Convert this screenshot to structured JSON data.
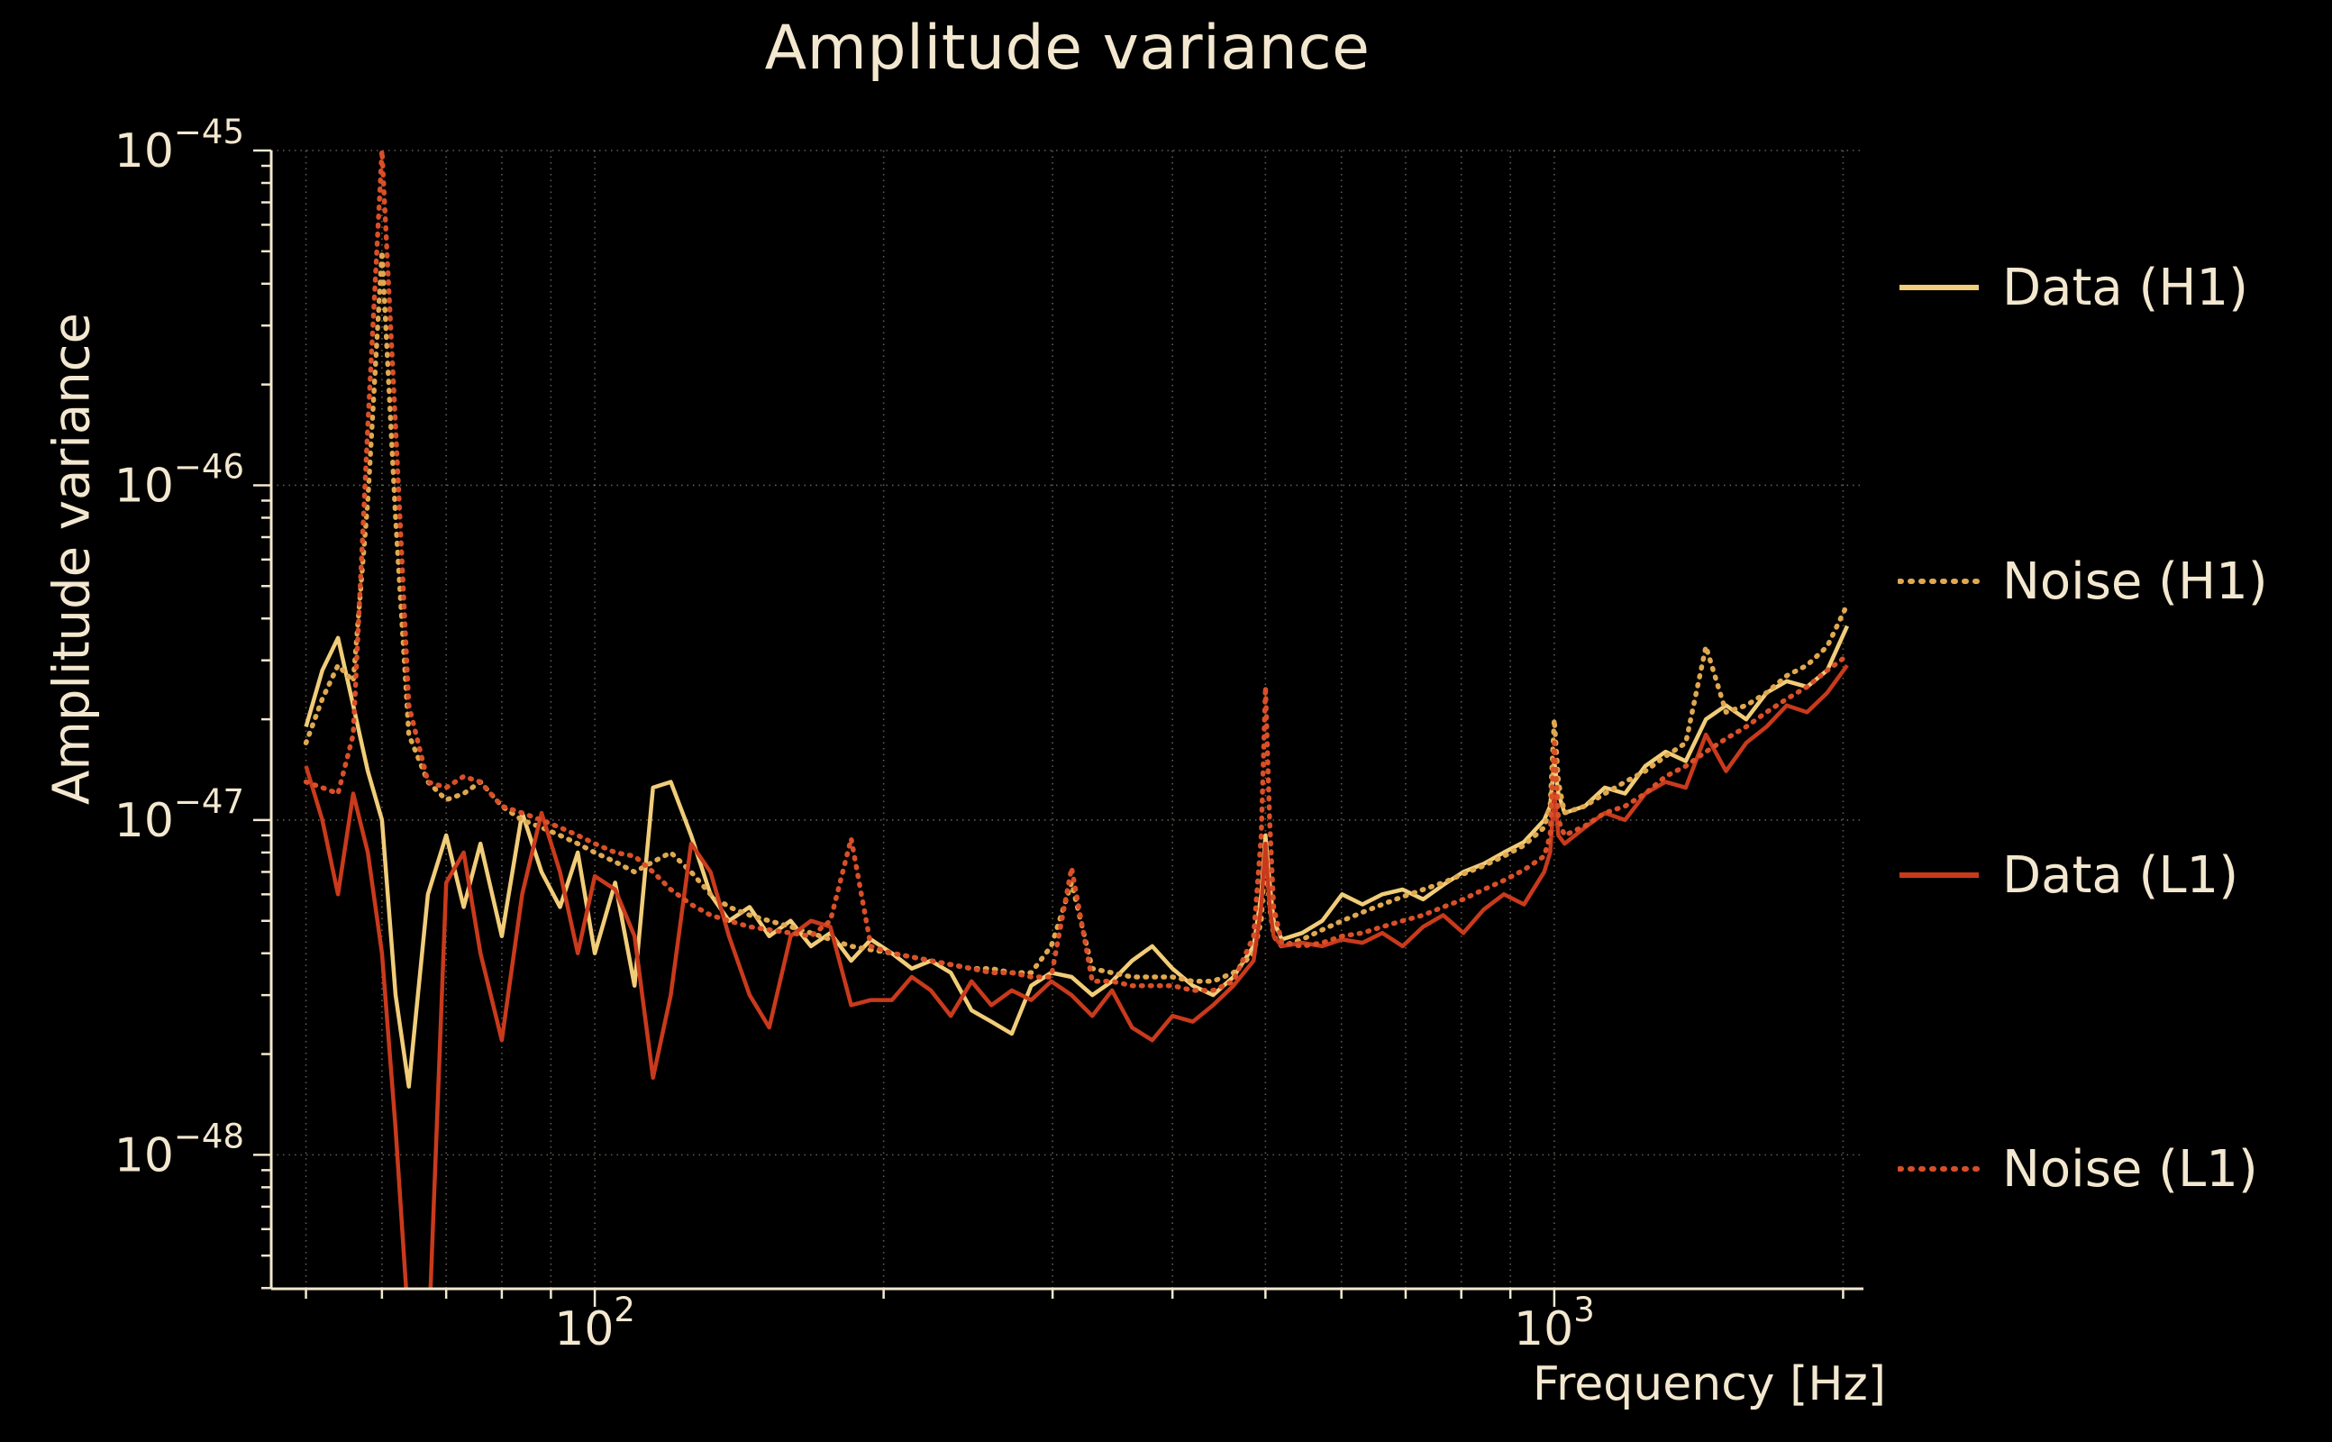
{
  "title": "Amplitude variance",
  "xlabel": "Frequency [Hz]",
  "ylabel": "Amplitude variance",
  "colors": {
    "background": "#000000",
    "text": "#f3e8cf",
    "grid": "#e8dcc0",
    "h1_data": "#f1cd79",
    "h1_noise": "#dfa850",
    "l1_data": "#c93a1c",
    "l1_noise": "#d84f28"
  },
  "legend": [
    {
      "label": "Data (H1)",
      "color": "#f1cd79",
      "dashed": false
    },
    {
      "label": "Noise (H1)",
      "color": "#dfa850",
      "dashed": true
    },
    {
      "label": "Data (L1)",
      "color": "#c93a1c",
      "dashed": false
    },
    {
      "label": "Noise (L1)",
      "color": "#d84f28",
      "dashed": true
    }
  ],
  "axes": {
    "xscale": "log",
    "yscale": "log",
    "xlim": [
      46,
      2100
    ],
    "ylim": [
      3.98e-49,
      1e-45
    ],
    "x_major_ticks": [
      {
        "value": 100,
        "base": "10",
        "exp": "2"
      },
      {
        "value": 1000,
        "base": "10",
        "exp": "3"
      }
    ],
    "x_minor_ticks": [
      50,
      60,
      70,
      80,
      90,
      200,
      300,
      400,
      500,
      600,
      700,
      800,
      900,
      2000
    ],
    "y_major_ticks": [
      {
        "value": 1e-45,
        "base": "10",
        "exp": "−45"
      },
      {
        "value": 1e-46,
        "base": "10",
        "exp": "−46"
      },
      {
        "value": 1e-47,
        "base": "10",
        "exp": "−47"
      },
      {
        "value": 1e-48,
        "base": "10",
        "exp": "−48"
      }
    ],
    "grid_on": true,
    "legend_position": "right-outside"
  },
  "chart_data": {
    "type": "line",
    "title": "Amplitude variance",
    "xlabel": "Frequency [Hz]",
    "ylabel": "Amplitude variance",
    "xscale": "log",
    "yscale": "log",
    "xlim": [
      46,
      2100
    ],
    "ylim": [
      3.98e-49,
      1e-45
    ],
    "x": [
      50,
      52,
      54,
      56,
      58,
      60,
      62,
      64,
      67,
      70,
      73,
      76,
      80,
      84,
      88,
      92,
      96,
      100,
      105,
      110,
      115,
      120,
      126,
      132,
      138,
      145,
      152,
      160,
      168,
      176,
      185,
      194,
      204,
      214,
      224,
      235,
      247,
      259,
      272,
      285,
      299,
      314,
      330,
      346,
      363,
      381,
      400,
      420,
      441,
      463,
      486,
      495,
      500,
      505,
      510,
      520,
      546,
      573,
      601,
      631,
      662,
      695,
      730,
      766,
      804,
      844,
      886,
      930,
      976,
      990,
      1000,
      1010,
      1025,
      1076,
      1129,
      1185,
      1244,
      1306,
      1371,
      1439,
      1510,
      1585,
      1664,
      1747,
      1834,
      1925,
      2020
    ],
    "series": [
      {
        "name": "Data (H1)",
        "color": "#f1cd79",
        "style": "solid",
        "values": [
          1.9e-47,
          2.8e-47,
          3.5e-47,
          2.2e-47,
          1.4e-47,
          1e-47,
          3e-48,
          1.6e-48,
          6e-48,
          9e-48,
          5.5e-48,
          8.5e-48,
          4.5e-48,
          1.05e-47,
          7e-48,
          5.5e-48,
          8e-48,
          4e-48,
          6.5e-48,
          3.2e-48,
          1.25e-47,
          1.3e-47,
          9e-48,
          6e-48,
          5e-48,
          5.5e-48,
          4.5e-48,
          5e-48,
          4.2e-48,
          4.6e-48,
          3.8e-48,
          4.4e-48,
          4e-48,
          3.6e-48,
          3.8e-48,
          3.5e-48,
          2.7e-48,
          2.5e-48,
          2.3e-48,
          3.2e-48,
          3.5e-48,
          3.4e-48,
          3e-48,
          3.3e-48,
          3.8e-48,
          4.2e-48,
          3.6e-48,
          3.2e-48,
          3e-48,
          3.4e-48,
          4.2e-48,
          6e-48,
          9e-48,
          6.5e-48,
          5e-48,
          4.4e-48,
          4.6e-48,
          5e-48,
          6e-48,
          5.6e-48,
          6e-48,
          6.2e-48,
          5.8e-48,
          6.4e-48,
          7e-48,
          7.4e-48,
          8e-48,
          8.6e-48,
          1e-47,
          1.1e-47,
          1.5e-47,
          1.2e-47,
          1.05e-47,
          1.1e-47,
          1.25e-47,
          1.2e-47,
          1.45e-47,
          1.6e-47,
          1.5e-47,
          2e-47,
          2.2e-47,
          2e-47,
          2.4e-47,
          2.6e-47,
          2.5e-47,
          2.8e-47,
          3.8e-47
        ]
      },
      {
        "name": "Noise (H1)",
        "color": "#dfa850",
        "style": "dotted",
        "values": [
          1.7e-47,
          2.3e-47,
          2.9e-47,
          2.6e-47,
          9e-47,
          5e-46,
          8e-47,
          1.8e-47,
          1.3e-47,
          1.15e-47,
          1.2e-47,
          1.3e-47,
          1.1e-47,
          1e-47,
          9.5e-48,
          9e-48,
          8.5e-48,
          8e-48,
          7.5e-48,
          7e-48,
          7.5e-48,
          8e-48,
          7e-48,
          6e-48,
          5.5e-48,
          5.2e-48,
          5e-48,
          4.8e-48,
          4.6e-48,
          4.4e-48,
          4.2e-48,
          4.1e-48,
          4e-48,
          3.9e-48,
          3.8e-48,
          3.7e-48,
          3.6e-48,
          3.6e-48,
          3.5e-48,
          3.5e-48,
          4.2e-48,
          6.5e-48,
          3.6e-48,
          3.5e-48,
          3.4e-48,
          3.4e-48,
          3.4e-48,
          3.3e-48,
          3.3e-48,
          3.5e-48,
          4e-48,
          5e-48,
          8e-48,
          5.5e-48,
          4.5e-48,
          4.2e-48,
          4.4e-48,
          4.7e-48,
          5e-48,
          5.3e-48,
          5.6e-48,
          5.9e-48,
          6.2e-48,
          6.5e-48,
          6.9e-48,
          7.3e-48,
          7.8e-48,
          8.4e-48,
          9.5e-48,
          1.1e-47,
          2e-47,
          1.3e-47,
          1.05e-47,
          1.1e-47,
          1.2e-47,
          1.3e-47,
          1.4e-47,
          1.55e-47,
          1.7e-47,
          3.3e-47,
          2.1e-47,
          2.2e-47,
          2.4e-47,
          2.7e-47,
          2.9e-47,
          3.3e-47,
          4.4e-47
        ]
      },
      {
        "name": "Data (L1)",
        "color": "#c93a1c",
        "style": "solid",
        "values": [
          1.45e-47,
          1e-47,
          6e-48,
          1.2e-47,
          8e-48,
          4e-48,
          1.2e-48,
          3e-49,
          2.5e-49,
          6.5e-48,
          8e-48,
          4e-48,
          2.2e-48,
          6e-48,
          1.05e-47,
          7e-48,
          4e-48,
          6.8e-48,
          6.2e-48,
          4.5e-48,
          1.7e-48,
          3e-48,
          8.5e-48,
          7e-48,
          4.5e-48,
          3e-48,
          2.4e-48,
          4.5e-48,
          5e-48,
          4.8e-48,
          2.8e-48,
          2.9e-48,
          2.9e-48,
          3.4e-48,
          3.1e-48,
          2.6e-48,
          3.3e-48,
          2.8e-48,
          3.1e-48,
          2.9e-48,
          3.3e-48,
          3e-48,
          2.6e-48,
          3.1e-48,
          2.4e-48,
          2.2e-48,
          2.6e-48,
          2.5e-48,
          2.8e-48,
          3.2e-48,
          3.8e-48,
          5.5e-48,
          8.5e-48,
          5.5e-48,
          4.5e-48,
          4.2e-48,
          4.3e-48,
          4.2e-48,
          4.4e-48,
          4.3e-48,
          4.6e-48,
          4.2e-48,
          4.8e-48,
          5.2e-48,
          4.6e-48,
          5.4e-48,
          6e-48,
          5.6e-48,
          7e-48,
          8e-48,
          1.2e-47,
          9e-48,
          8.5e-48,
          9.5e-48,
          1.05e-47,
          1e-47,
          1.2e-47,
          1.3e-47,
          1.25e-47,
          1.8e-47,
          1.4e-47,
          1.7e-47,
          1.9e-47,
          2.2e-47,
          2.1e-47,
          2.4e-47,
          2.9e-47
        ]
      },
      {
        "name": "Noise (L1)",
        "color": "#d84f28",
        "style": "dotted",
        "values": [
          1.3e-47,
          1.25e-47,
          1.2e-47,
          1.8e-47,
          1.5e-46,
          1e-45,
          1.5e-46,
          2.2e-47,
          1.3e-47,
          1.25e-47,
          1.35e-47,
          1.3e-47,
          1.1e-47,
          1.05e-47,
          1e-47,
          9.5e-48,
          9e-48,
          8.5e-48,
          8e-48,
          7.8e-48,
          7e-48,
          6.2e-48,
          5.6e-48,
          5.2e-48,
          5e-48,
          4.8e-48,
          4.7e-48,
          4.6e-48,
          4.5e-48,
          5e-48,
          8.8e-48,
          4.2e-48,
          4e-48,
          3.9e-48,
          3.8e-48,
          3.7e-48,
          3.6e-48,
          3.5e-48,
          3.5e-48,
          3.4e-48,
          3.4e-48,
          7.2e-48,
          3.3e-48,
          3.3e-48,
          3.2e-48,
          3.2e-48,
          3.2e-48,
          3.1e-48,
          3.1e-48,
          3.3e-48,
          4.5e-48,
          9e-48,
          2.5e-47,
          1e-47,
          5.5e-48,
          4.3e-48,
          4.2e-48,
          4.3e-48,
          4.5e-48,
          4.6e-48,
          4.8e-48,
          5e-48,
          5.2e-48,
          5.5e-48,
          5.8e-48,
          6.2e-48,
          6.6e-48,
          7.1e-48,
          7.8e-48,
          9e-48,
          1.7e-47,
          1e-47,
          9e-48,
          9.6e-48,
          1.05e-47,
          1.1e-47,
          1.2e-47,
          1.35e-47,
          1.45e-47,
          1.6e-47,
          1.75e-47,
          1.9e-47,
          2.1e-47,
          2.3e-47,
          2.5e-47,
          2.8e-47,
          3.1e-47
        ]
      }
    ]
  }
}
